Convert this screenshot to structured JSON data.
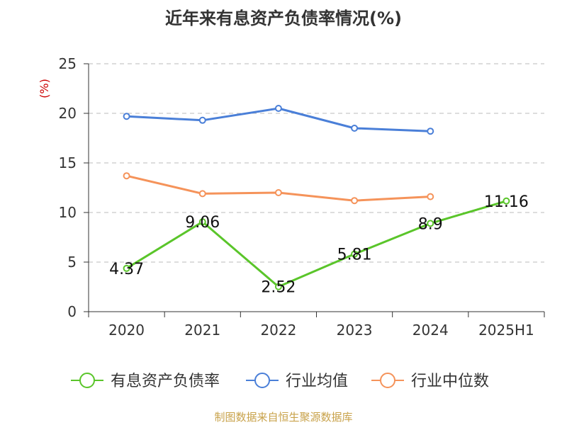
{
  "chart_data": {
    "type": "line",
    "title": "近年来有息资产负债率情况(%)",
    "ylabel": "(%)",
    "xlabel": "",
    "categories": [
      "2020",
      "2021",
      "2022",
      "2023",
      "2024",
      "2025H1"
    ],
    "ylim": [
      0,
      25
    ],
    "yticks": [
      0,
      5,
      10,
      15,
      20,
      25
    ],
    "grid": true,
    "legend_position": "bottom",
    "series": [
      {
        "name": "有息资产负债率",
        "color": "#5ac52a",
        "values": [
          4.37,
          9.06,
          2.52,
          5.81,
          8.9,
          11.16
        ],
        "labels": [
          "4.37",
          "9.06",
          "2.52",
          "5.81",
          "8.9",
          "11.16"
        ]
      },
      {
        "name": "行业均值",
        "color": "#4a7fd8",
        "values": [
          19.7,
          19.3,
          20.5,
          18.5,
          18.2,
          null
        ]
      },
      {
        "name": "行业中位数",
        "color": "#f5935a",
        "values": [
          13.7,
          11.9,
          12.0,
          11.2,
          11.6,
          null
        ]
      }
    ]
  },
  "footer": {
    "source": "制图数据来自恒生聚源数据库"
  }
}
